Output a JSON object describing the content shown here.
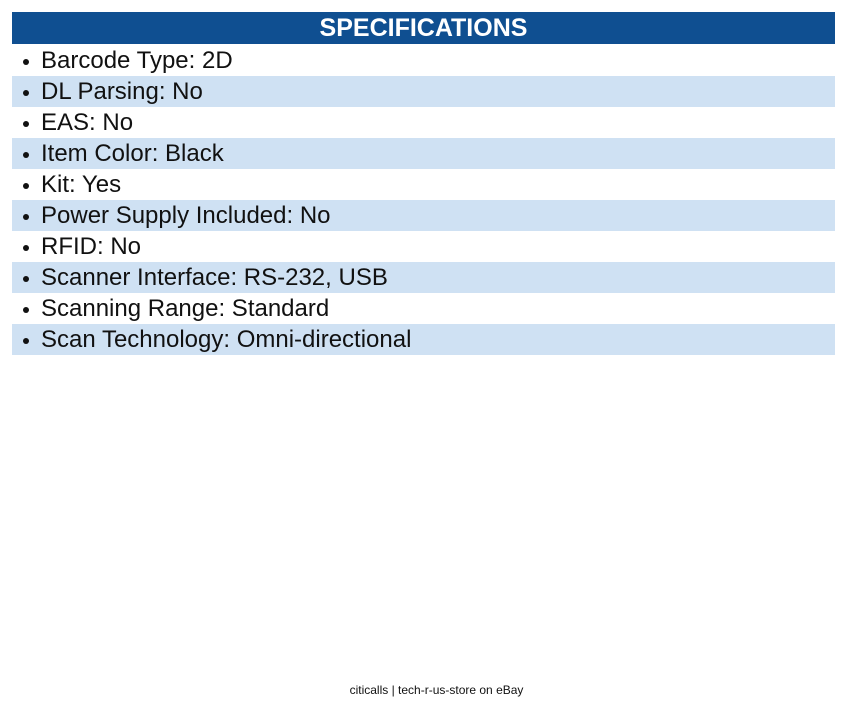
{
  "header": {
    "title": "SPECIFICATIONS"
  },
  "items": [
    "Barcode Type: 2D",
    "DL Parsing: No",
    "EAS: No",
    "Item Color: Black",
    "Kit: Yes",
    "Power Supply Included: No",
    "RFID: No",
    "Scanner Interface: RS-232, USB",
    "Scanning Range: Standard",
    "Scan Technology: Omni-directional"
  ],
  "footer": "citicalls | tech-r-us-store on eBay"
}
